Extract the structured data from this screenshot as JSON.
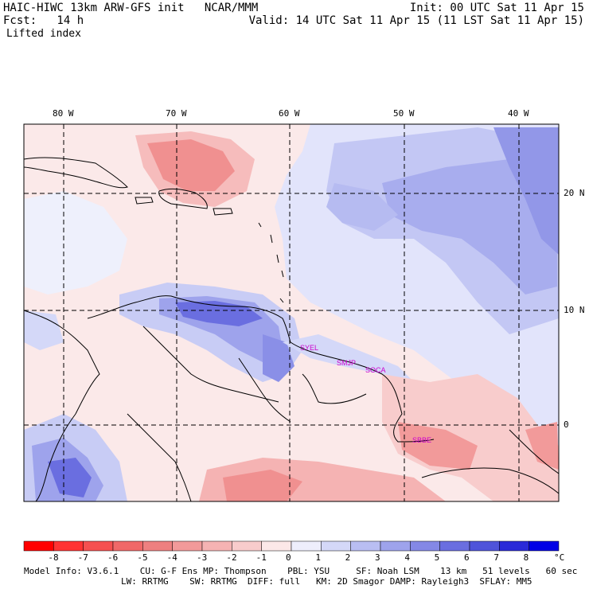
{
  "header": {
    "left_line1": "HAIC-HIWC 13km ARW-GFS init   NCAR/MMM",
    "left_line2": "Fcst:   14 h",
    "right_line1": "Init: 00 UTC Sat 11 Apr 15",
    "right_line2": "Valid: 14 UTC Sat 11 Apr 15 (11 LST Sat 11 Apr 15)",
    "field": "Lifted index"
  },
  "map": {
    "lon_labels": [
      "80 W",
      "70 W",
      "60 W",
      "50 W",
      "40 W"
    ],
    "lat_labels": [
      "20 N",
      "10 N",
      "0"
    ],
    "stations": [
      "SYEL",
      "SMJP",
      "SOCA",
      "SBBE"
    ],
    "colors": {
      "background": "#fbe9e9",
      "land_outline": "#000000",
      "station_label": "#cc00cc"
    }
  },
  "colorbar": {
    "ticks": [
      "-8",
      "-7",
      "-6",
      "-5",
      "-4",
      "-3",
      "-2",
      "-1",
      "0",
      "1",
      "2",
      "3",
      "4",
      "5",
      "6",
      "7",
      "8"
    ],
    "unit": "°C",
    "colors": [
      "#ff0000",
      "#ff3333",
      "#f55050",
      "#f06868",
      "#ee8080",
      "#f29a9a",
      "#f5b3b3",
      "#f8cccc",
      "#fce8e8",
      "#eeeefc",
      "#d4d8f8",
      "#b9bef2",
      "#9ea3ec",
      "#8488e6",
      "#6a6ee0",
      "#4f54da",
      "#2a2ad8",
      "#0000e6"
    ]
  },
  "footer": {
    "line1": "Model Info: V3.6.1    CU: G-F Ens MP: Thompson    PBL: YSU     SF: Noah LSM    13 km   51 levels   60 sec",
    "line2": "LW: RRTMG    SW: RRTMG  DIFF: full   KM: 2D Smagor DAMP: Rayleigh3  SFLAY: MM5"
  }
}
